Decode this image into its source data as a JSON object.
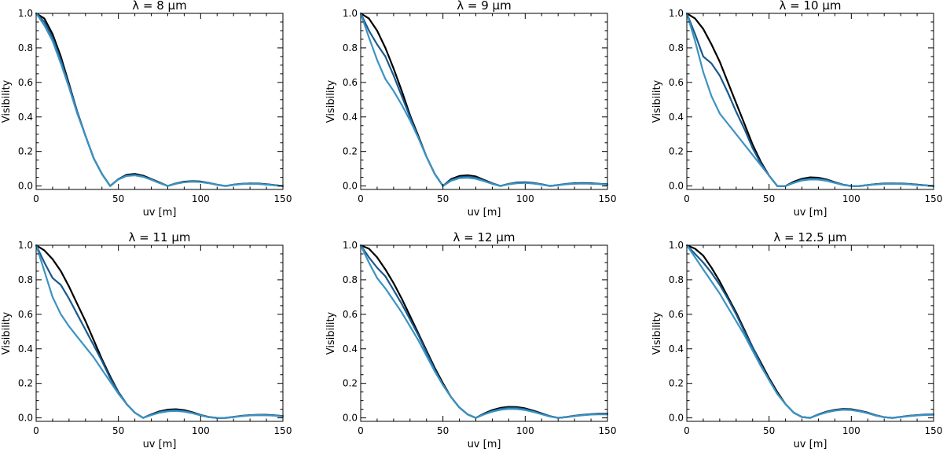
{
  "colors": {
    "series_1": "#000000",
    "series_2": "#1a5a8c",
    "series_3": "#3b93c3"
  },
  "chart_data": [
    {
      "type": "line",
      "title": "λ = 8 μm",
      "xlabel": "uv [m]",
      "ylabel": "Visibility",
      "xlim": [
        0,
        150
      ],
      "ylim": [
        -0.02,
        1.0
      ],
      "xticks": [
        0,
        50,
        100,
        150
      ],
      "yticks": [
        0.0,
        0.2,
        0.4,
        0.6,
        0.8,
        1.0
      ],
      "x": [
        0,
        5,
        10,
        15,
        20,
        25,
        30,
        35,
        40,
        45,
        50,
        55,
        60,
        65,
        70,
        75,
        80,
        85,
        90,
        95,
        100,
        105,
        110,
        115,
        120,
        125,
        130,
        135,
        140,
        145,
        150
      ],
      "series": [
        {
          "values": [
            1.0,
            0.97,
            0.88,
            0.75,
            0.59,
            0.43,
            0.29,
            0.16,
            0.07,
            0.0,
            0.04,
            0.065,
            0.07,
            0.06,
            0.04,
            0.02,
            0.0,
            0.015,
            0.025,
            0.028,
            0.026,
            0.018,
            0.008,
            0.0,
            0.008,
            0.013,
            0.015,
            0.014,
            0.01,
            0.005,
            0.0
          ]
        },
        {
          "values": [
            1.0,
            0.95,
            0.86,
            0.73,
            0.58,
            0.43,
            0.29,
            0.16,
            0.07,
            0.0,
            0.04,
            0.06,
            0.065,
            0.055,
            0.038,
            0.018,
            0.0,
            0.014,
            0.023,
            0.026,
            0.024,
            0.017,
            0.008,
            0.0,
            0.007,
            0.012,
            0.014,
            0.013,
            0.009,
            0.004,
            0.0
          ]
        },
        {
          "values": [
            1.0,
            0.93,
            0.84,
            0.71,
            0.57,
            0.42,
            0.29,
            0.16,
            0.07,
            0.0,
            0.038,
            0.058,
            0.062,
            0.053,
            0.036,
            0.017,
            0.0,
            0.013,
            0.022,
            0.025,
            0.023,
            0.016,
            0.007,
            0.0,
            0.007,
            0.011,
            0.013,
            0.012,
            0.008,
            0.004,
            0.0
          ]
        }
      ]
    },
    {
      "type": "line",
      "title": "λ = 9 μm",
      "xlabel": "uv [m]",
      "ylabel": "Visibility",
      "xlim": [
        0,
        150
      ],
      "ylim": [
        -0.02,
        1.0
      ],
      "xticks": [
        0,
        50,
        100,
        150
      ],
      "yticks": [
        0.0,
        0.2,
        0.4,
        0.6,
        0.8,
        1.0
      ],
      "x": [
        0,
        5,
        10,
        15,
        20,
        25,
        30,
        35,
        40,
        45,
        50,
        55,
        60,
        65,
        70,
        75,
        80,
        85,
        90,
        95,
        100,
        105,
        110,
        115,
        120,
        125,
        130,
        135,
        140,
        145,
        150
      ],
      "series": [
        {
          "values": [
            1.0,
            0.97,
            0.9,
            0.8,
            0.68,
            0.55,
            0.41,
            0.29,
            0.17,
            0.07,
            0.0,
            0.04,
            0.058,
            0.062,
            0.055,
            0.035,
            0.015,
            0.0,
            0.012,
            0.02,
            0.022,
            0.018,
            0.01,
            0.0,
            0.006,
            0.012,
            0.016,
            0.017,
            0.016,
            0.013,
            0.01
          ]
        },
        {
          "values": [
            1.0,
            0.9,
            0.82,
            0.75,
            0.64,
            0.52,
            0.4,
            0.28,
            0.17,
            0.07,
            0.0,
            0.035,
            0.05,
            0.055,
            0.048,
            0.032,
            0.013,
            0.0,
            0.011,
            0.018,
            0.02,
            0.016,
            0.009,
            0.0,
            0.005,
            0.011,
            0.014,
            0.015,
            0.014,
            0.012,
            0.009
          ]
        },
        {
          "values": [
            1.0,
            0.86,
            0.73,
            0.62,
            0.55,
            0.47,
            0.38,
            0.28,
            0.17,
            0.07,
            0.0,
            0.03,
            0.045,
            0.048,
            0.042,
            0.028,
            0.012,
            0.0,
            0.01,
            0.016,
            0.018,
            0.014,
            0.008,
            0.0,
            0.005,
            0.01,
            0.013,
            0.014,
            0.013,
            0.011,
            0.008
          ]
        }
      ]
    },
    {
      "type": "line",
      "title": "λ = 10 μm",
      "xlabel": "uv [m]",
      "ylabel": "Visibility",
      "xlim": [
        0,
        150
      ],
      "ylim": [
        -0.02,
        1.0
      ],
      "xticks": [
        0,
        50,
        100,
        150
      ],
      "yticks": [
        0.0,
        0.2,
        0.4,
        0.6,
        0.8,
        1.0
      ],
      "x": [
        0,
        5,
        10,
        15,
        20,
        25,
        30,
        35,
        40,
        45,
        50,
        55,
        60,
        65,
        70,
        75,
        80,
        85,
        90,
        95,
        100,
        105,
        110,
        115,
        120,
        125,
        130,
        135,
        140,
        145,
        150
      ],
      "series": [
        {
          "values": [
            1.0,
            0.97,
            0.91,
            0.82,
            0.72,
            0.6,
            0.48,
            0.36,
            0.24,
            0.14,
            0.06,
            0.0,
            0.0,
            0.025,
            0.042,
            0.05,
            0.048,
            0.038,
            0.022,
            0.008,
            0.0,
            0.0,
            0.006,
            0.011,
            0.014,
            0.015,
            0.014,
            0.012,
            0.008,
            0.004,
            0.0
          ]
        },
        {
          "values": [
            1.0,
            0.88,
            0.75,
            0.71,
            0.64,
            0.54,
            0.43,
            0.33,
            0.22,
            0.13,
            0.06,
            0.0,
            0.0,
            0.02,
            0.036,
            0.043,
            0.042,
            0.034,
            0.02,
            0.007,
            0.0,
            0.0,
            0.005,
            0.01,
            0.013,
            0.014,
            0.013,
            0.011,
            0.007,
            0.003,
            0.0
          ]
        },
        {
          "values": [
            1.0,
            0.84,
            0.66,
            0.52,
            0.42,
            0.36,
            0.3,
            0.24,
            0.18,
            0.12,
            0.06,
            0.0,
            0.0,
            0.018,
            0.032,
            0.038,
            0.037,
            0.03,
            0.018,
            0.006,
            0.0,
            0.0,
            0.005,
            0.009,
            0.012,
            0.013,
            0.012,
            0.01,
            0.006,
            0.003,
            0.0
          ]
        }
      ]
    },
    {
      "type": "line",
      "title": "λ = 11 μm",
      "xlabel": "uv [m]",
      "ylabel": "Visibility",
      "xlim": [
        0,
        150
      ],
      "ylim": [
        -0.02,
        1.0
      ],
      "xticks": [
        0,
        50,
        100,
        150
      ],
      "yticks": [
        0.0,
        0.2,
        0.4,
        0.6,
        0.8,
        1.0
      ],
      "x": [
        0,
        5,
        10,
        15,
        20,
        25,
        30,
        35,
        40,
        45,
        50,
        55,
        60,
        65,
        70,
        75,
        80,
        85,
        90,
        95,
        100,
        105,
        110,
        115,
        120,
        125,
        130,
        135,
        140,
        145,
        150
      ],
      "series": [
        {
          "values": [
            1.0,
            0.97,
            0.92,
            0.85,
            0.76,
            0.66,
            0.56,
            0.45,
            0.34,
            0.24,
            0.15,
            0.08,
            0.03,
            0.0,
            0.02,
            0.038,
            0.048,
            0.05,
            0.045,
            0.033,
            0.017,
            0.005,
            0.0,
            0.0,
            0.006,
            0.012,
            0.016,
            0.018,
            0.018,
            0.015,
            0.01
          ]
        },
        {
          "values": [
            1.0,
            0.9,
            0.81,
            0.77,
            0.69,
            0.6,
            0.51,
            0.42,
            0.33,
            0.23,
            0.15,
            0.08,
            0.03,
            0.0,
            0.018,
            0.034,
            0.043,
            0.045,
            0.04,
            0.03,
            0.015,
            0.004,
            0.0,
            0.0,
            0.005,
            0.011,
            0.015,
            0.017,
            0.016,
            0.014,
            0.009
          ]
        },
        {
          "values": [
            1.0,
            0.85,
            0.7,
            0.6,
            0.53,
            0.47,
            0.41,
            0.35,
            0.28,
            0.21,
            0.14,
            0.08,
            0.03,
            0.0,
            0.016,
            0.03,
            0.038,
            0.04,
            0.036,
            0.027,
            0.014,
            0.004,
            0.0,
            0.0,
            0.005,
            0.01,
            0.014,
            0.016,
            0.015,
            0.013,
            0.008
          ]
        }
      ]
    },
    {
      "type": "line",
      "title": "λ = 12 μm",
      "xlabel": "uv [m]",
      "ylabel": "Visibility",
      "xlim": [
        0,
        150
      ],
      "ylim": [
        -0.02,
        1.0
      ],
      "xticks": [
        0,
        50,
        100,
        150
      ],
      "yticks": [
        0.0,
        0.2,
        0.4,
        0.6,
        0.8,
        1.0
      ],
      "x": [
        0,
        5,
        10,
        15,
        20,
        25,
        30,
        35,
        40,
        45,
        50,
        55,
        60,
        65,
        70,
        75,
        80,
        85,
        90,
        95,
        100,
        105,
        110,
        115,
        120,
        125,
        130,
        135,
        140,
        145,
        150
      ],
      "series": [
        {
          "values": [
            1.0,
            0.98,
            0.93,
            0.86,
            0.78,
            0.69,
            0.59,
            0.49,
            0.39,
            0.29,
            0.2,
            0.12,
            0.06,
            0.02,
            0.0,
            0.025,
            0.045,
            0.058,
            0.064,
            0.063,
            0.055,
            0.042,
            0.026,
            0.01,
            0.0,
            0.005,
            0.012,
            0.018,
            0.022,
            0.024,
            0.024
          ]
        },
        {
          "values": [
            1.0,
            0.93,
            0.87,
            0.82,
            0.74,
            0.66,
            0.57,
            0.48,
            0.38,
            0.28,
            0.19,
            0.12,
            0.06,
            0.02,
            0.0,
            0.022,
            0.04,
            0.052,
            0.058,
            0.057,
            0.05,
            0.038,
            0.023,
            0.009,
            0.0,
            0.004,
            0.011,
            0.017,
            0.021,
            0.022,
            0.022
          ]
        },
        {
          "values": [
            1.0,
            0.9,
            0.81,
            0.75,
            0.68,
            0.61,
            0.53,
            0.45,
            0.36,
            0.27,
            0.19,
            0.12,
            0.06,
            0.02,
            0.0,
            0.02,
            0.036,
            0.047,
            0.052,
            0.051,
            0.045,
            0.034,
            0.021,
            0.008,
            0.0,
            0.004,
            0.01,
            0.015,
            0.019,
            0.02,
            0.02
          ]
        }
      ]
    },
    {
      "type": "line",
      "title": "λ = 12.5 μm",
      "xlabel": "uv [m]",
      "ylabel": "Visibility",
      "xlim": [
        0,
        150
      ],
      "ylim": [
        -0.02,
        1.0
      ],
      "xticks": [
        0,
        50,
        100,
        150
      ],
      "yticks": [
        0.0,
        0.2,
        0.4,
        0.6,
        0.8,
        1.0
      ],
      "x": [
        0,
        5,
        10,
        15,
        20,
        25,
        30,
        35,
        40,
        45,
        50,
        55,
        60,
        65,
        70,
        75,
        80,
        85,
        90,
        95,
        100,
        105,
        110,
        115,
        120,
        125,
        130,
        135,
        140,
        145,
        150
      ],
      "series": [
        {
          "values": [
            1.0,
            0.98,
            0.94,
            0.87,
            0.79,
            0.7,
            0.61,
            0.51,
            0.41,
            0.32,
            0.23,
            0.15,
            0.08,
            0.03,
            0.005,
            0.0,
            0.02,
            0.036,
            0.047,
            0.052,
            0.05,
            0.042,
            0.03,
            0.015,
            0.004,
            0.0,
            0.006,
            0.012,
            0.016,
            0.019,
            0.02
          ]
        },
        {
          "values": [
            1.0,
            0.95,
            0.9,
            0.84,
            0.77,
            0.69,
            0.6,
            0.5,
            0.41,
            0.31,
            0.22,
            0.14,
            0.08,
            0.03,
            0.005,
            0.0,
            0.019,
            0.034,
            0.045,
            0.05,
            0.048,
            0.04,
            0.028,
            0.014,
            0.004,
            0.0,
            0.006,
            0.011,
            0.015,
            0.018,
            0.019
          ]
        },
        {
          "values": [
            1.0,
            0.93,
            0.86,
            0.79,
            0.72,
            0.64,
            0.56,
            0.48,
            0.39,
            0.3,
            0.22,
            0.14,
            0.08,
            0.03,
            0.005,
            0.0,
            0.018,
            0.032,
            0.042,
            0.047,
            0.045,
            0.038,
            0.027,
            0.013,
            0.004,
            0.0,
            0.005,
            0.01,
            0.014,
            0.017,
            0.018
          ]
        }
      ]
    }
  ]
}
